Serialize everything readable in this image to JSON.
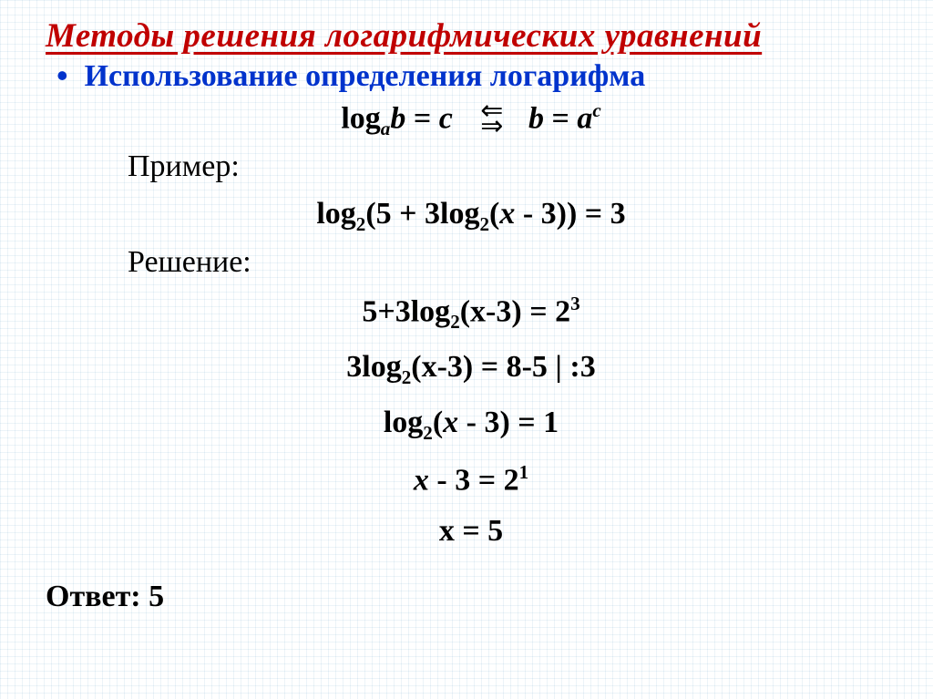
{
  "title": "Методы  решения  логарифмических  уравнений",
  "subtitle": "Использование определения логарифма",
  "bullet_char": "•",
  "formula": {
    "left_prefix": "log",
    "left_sub": "a",
    "left_arg": "b",
    "eq": " = ",
    "left_rhs": "c",
    "iff_top": "⇐",
    "iff_bot": "⇒",
    "right_lhs": "b",
    "right_eq": " = ",
    "right_base": "a",
    "right_sup": "c"
  },
  "label_example": "Пример:",
  "equation_example": {
    "p1": "log",
    "s1": "2",
    "p2": "(5 + 3log",
    "s2": "2",
    "p3": "(",
    "x": "x",
    "p4": " - 3)) = 3"
  },
  "label_solution": "Решение:",
  "step1": {
    "p1": "5+3log",
    "s1": "2",
    "p2": "(x-3) = 2",
    "sup": "3"
  },
  "step2": {
    "p1": "3log",
    "s1": "2",
    "p2": "(x-3) = 8-5 | :3"
  },
  "step3": {
    "p1": "log",
    "s1": "2",
    "p2": "(",
    "x": "x",
    "p3": " - 3) = 1"
  },
  "step4": {
    "x": "x",
    "rest": " - 3 =  2",
    "sup": "1"
  },
  "step5": "x = 5",
  "answer": "Ответ: 5"
}
